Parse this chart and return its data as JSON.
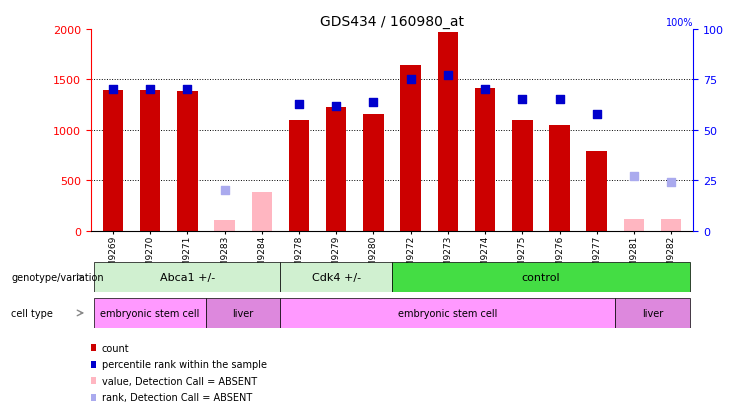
{
  "title": "GDS434 / 160980_at",
  "samples": [
    "GSM9269",
    "GSM9270",
    "GSM9271",
    "GSM9283",
    "GSM9284",
    "GSM9278",
    "GSM9279",
    "GSM9280",
    "GSM9272",
    "GSM9273",
    "GSM9274",
    "GSM9275",
    "GSM9276",
    "GSM9277",
    "GSM9281",
    "GSM9282"
  ],
  "counts": [
    1390,
    1395,
    1385,
    null,
    null,
    1100,
    1230,
    1160,
    1640,
    1970,
    1410,
    1100,
    1050,
    790,
    null,
    null
  ],
  "counts_absent": [
    null,
    null,
    null,
    110,
    380,
    null,
    null,
    null,
    null,
    null,
    null,
    null,
    null,
    null,
    115,
    115
  ],
  "ranks": [
    70,
    70,
    70,
    null,
    null,
    63,
    62,
    64,
    75,
    77,
    70,
    65,
    65,
    58,
    null,
    null
  ],
  "ranks_absent": [
    null,
    null,
    null,
    20,
    null,
    null,
    null,
    null,
    null,
    null,
    null,
    null,
    null,
    null,
    27,
    24
  ],
  "ylim_left": [
    0,
    2000
  ],
  "ylim_right": [
    0,
    100
  ],
  "yticks_left": [
    0,
    500,
    1000,
    1500,
    2000
  ],
  "yticks_right": [
    0,
    25,
    50,
    75,
    100
  ],
  "genotype_groups": [
    {
      "label": "Abca1 +/-",
      "start": 0,
      "end": 5,
      "color": "#d0f0d0"
    },
    {
      "label": "Cdk4 +/-",
      "start": 5,
      "end": 8,
      "color": "#d0f0d0"
    },
    {
      "label": "control",
      "start": 8,
      "end": 16,
      "color": "#44dd44"
    }
  ],
  "cell_type_groups": [
    {
      "label": "embryonic stem cell",
      "start": 0,
      "end": 3,
      "color": "#ff99ff"
    },
    {
      "label": "liver",
      "start": 3,
      "end": 5,
      "color": "#dd88dd"
    },
    {
      "label": "embryonic stem cell",
      "start": 5,
      "end": 14,
      "color": "#ff99ff"
    },
    {
      "label": "liver",
      "start": 14,
      "end": 16,
      "color": "#dd88dd"
    }
  ],
  "bar_color": "#cc0000",
  "bar_absent_color": "#ffb6c1",
  "rank_color": "#0000cc",
  "rank_absent_color": "#aaaaee",
  "legend_items": [
    {
      "label": "count",
      "color": "#cc0000"
    },
    {
      "label": "percentile rank within the sample",
      "color": "#0000cc"
    },
    {
      "label": "value, Detection Call = ABSENT",
      "color": "#ffb6c1"
    },
    {
      "label": "rank, Detection Call = ABSENT",
      "color": "#aaaaee"
    }
  ],
  "bar_width": 0.55,
  "rank_marker_size": 30,
  "gridline_color": "black",
  "gridline_lw": 0.7,
  "gridlines": [
    500,
    1000,
    1500
  ]
}
